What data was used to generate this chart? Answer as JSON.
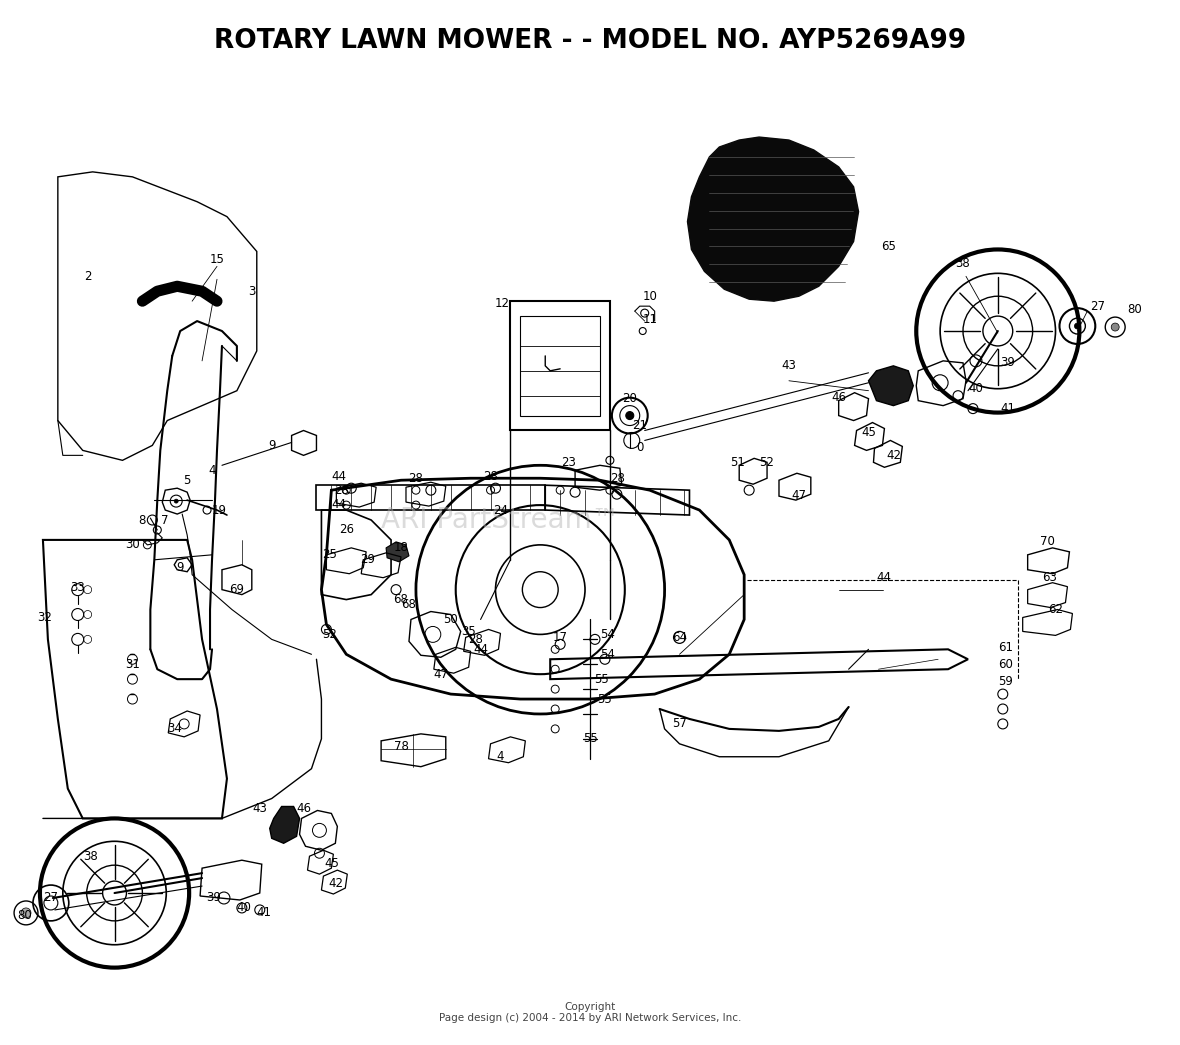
{
  "title": "ROTARY LAWN MOWER - - MODEL NO. AYP5269A99",
  "title_fontsize": 19,
  "title_fontweight": "bold",
  "copyright_line1": "Copyright",
  "copyright_line2": "Page design (c) 2004 - 2014 by ARI Network Services, Inc.",
  "copyright_fontsize": 7.5,
  "watermark": "ARI PartStream™",
  "watermark_fontsize": 20,
  "watermark_color": "#b0b0b0",
  "watermark_alpha": 0.45,
  "bg_color": "#ffffff",
  "diagram_color": "#000000",
  "lfs": 8.5,
  "fig_width": 11.8,
  "fig_height": 10.45,
  "dpi": 100
}
